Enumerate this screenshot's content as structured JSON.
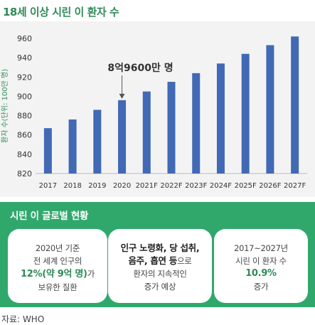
{
  "title": "18세 이상 시린 이 환자 수",
  "chart_data": {
    "type": "bar",
    "categories": [
      "2017",
      "2018",
      "2019",
      "2020",
      "2021F",
      "2022F",
      "2023F",
      "2024F",
      "2025F",
      "2026F",
      "2027F"
    ],
    "values": [
      867,
      876,
      886,
      896,
      905,
      915,
      924,
      934,
      944,
      953,
      962
    ],
    "ylabel": "환자 수(단위: 100만 명)",
    "ylim": [
      820,
      970
    ],
    "yticks": [
      820,
      840,
      860,
      880,
      900,
      920,
      940,
      960
    ],
    "bar_color": "#4169b5",
    "annotation": {
      "text": "8억9600만 명",
      "target": "2020"
    },
    "grid": false
  },
  "panel": {
    "title": "시린 이 글로벌 현황",
    "bg_color": "#30a86c",
    "card1": {
      "line1": "2020년 기준",
      "line2": "전 세계 인구의",
      "highlight": "12%(약 9억 명)",
      "suffix": "가",
      "line4": "보유한 질환"
    },
    "card2": {
      "line1": "인구 노령화, 당 섭취,",
      "line2a": "음주, 흡연 등",
      "line2b": "으로",
      "line3": "환자의 지속적인",
      "line4": "증가 예상"
    },
    "card3": {
      "line1": "2017~2027년",
      "line2": "시린 이 환자 수",
      "highlight": "10.9%",
      "line4": "증가"
    }
  },
  "source": "자료: WHO"
}
